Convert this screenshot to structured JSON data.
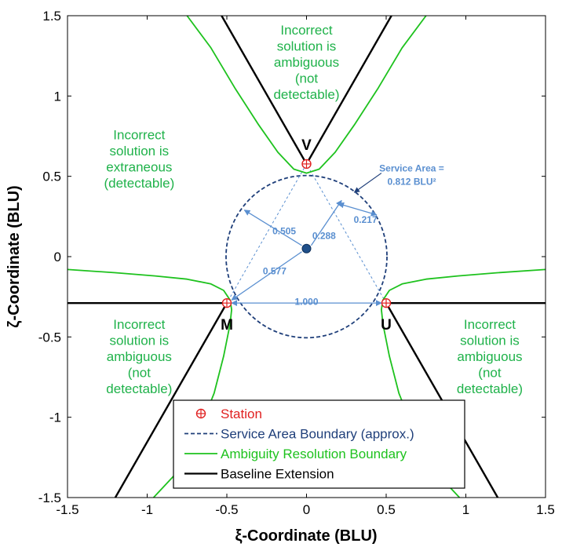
{
  "chart_data": {
    "type": "line",
    "xlabel": "ξ-Coordinate (BLU)",
    "ylabel": "ζ-Coordinate (BLU)",
    "xlim": [
      -1.5,
      1.5
    ],
    "ylim": [
      -1.5,
      1.5
    ],
    "xticks": [
      -1.5,
      -1,
      -0.5,
      0,
      0.5,
      1,
      1.5
    ],
    "yticks": [
      -1.5,
      -1,
      -0.5,
      0,
      0.5,
      1,
      1.5
    ],
    "xtick_labels": [
      "-1.5",
      "-1",
      "-0.5",
      "0",
      "0.5",
      "1",
      "1.5"
    ],
    "ytick_labels": [
      "-1.5",
      "-1",
      "-0.5",
      "0",
      "0.5",
      "1",
      "1.5"
    ],
    "grid": false,
    "legend_position": "bottom-center",
    "stations": [
      {
        "name": "V",
        "x": 0.0,
        "y": 0.577
      },
      {
        "name": "M",
        "x": -0.5,
        "y": -0.289
      },
      {
        "name": "U",
        "x": 0.5,
        "y": -0.289
      }
    ],
    "center": {
      "x": 0.0,
      "y": 0.05
    },
    "service_area": {
      "radius": 0.505,
      "center": [
        0.0,
        0.0
      ],
      "label": "Service Area =",
      "value": "0.812 BLU²"
    },
    "baseline_extensions": [
      [
        [
          0.0,
          0.577
        ],
        [
          -0.533,
          1.5
        ]
      ],
      [
        [
          0.0,
          0.577
        ],
        [
          0.533,
          1.5
        ]
      ],
      [
        [
          -0.5,
          -0.289
        ],
        [
          -1.5,
          -0.289
        ]
      ],
      [
        [
          -0.5,
          -0.289
        ],
        [
          -1.2,
          -1.5
        ]
      ],
      [
        [
          0.5,
          -0.289
        ],
        [
          1.5,
          -0.289
        ]
      ],
      [
        [
          0.5,
          -0.289
        ],
        [
          1.2,
          -1.5
        ]
      ]
    ],
    "ambiguity_boundary": [
      [
        [
          -0.75,
          1.5
        ],
        [
          -0.6,
          1.3
        ],
        [
          -0.45,
          1.05
        ],
        [
          -0.3,
          0.82
        ],
        [
          -0.18,
          0.65
        ],
        [
          -0.08,
          0.545
        ],
        [
          0.0,
          0.52
        ],
        [
          0.08,
          0.545
        ],
        [
          0.18,
          0.65
        ],
        [
          0.3,
          0.82
        ],
        [
          0.45,
          1.05
        ],
        [
          0.6,
          1.3
        ],
        [
          0.75,
          1.5
        ]
      ],
      [
        [
          -1.5,
          -0.08
        ],
        [
          -1.2,
          -0.1
        ],
        [
          -0.95,
          -0.12
        ],
        [
          -0.75,
          -0.14
        ],
        [
          -0.6,
          -0.17
        ],
        [
          -0.52,
          -0.21
        ],
        [
          -0.48,
          -0.27
        ],
        [
          -0.47,
          -0.33
        ],
        [
          -0.48,
          -0.42
        ],
        [
          -0.52,
          -0.62
        ],
        [
          -0.58,
          -0.85
        ],
        [
          -0.68,
          -1.1
        ],
        [
          -0.8,
          -1.33
        ],
        [
          -0.96,
          -1.5
        ]
      ],
      [
        [
          1.5,
          -0.08
        ],
        [
          1.2,
          -0.1
        ],
        [
          0.95,
          -0.12
        ],
        [
          0.75,
          -0.14
        ],
        [
          0.6,
          -0.17
        ],
        [
          0.52,
          -0.21
        ],
        [
          0.48,
          -0.27
        ],
        [
          0.47,
          -0.33
        ],
        [
          0.48,
          -0.42
        ],
        [
          0.52,
          -0.62
        ],
        [
          0.58,
          -0.85
        ],
        [
          0.68,
          -1.1
        ],
        [
          0.8,
          -1.33
        ],
        [
          0.96,
          -1.5
        ]
      ]
    ],
    "dimension_labels": [
      {
        "text": "0.505",
        "x": -0.14,
        "y": 0.16
      },
      {
        "text": "0.288",
        "x": 0.11,
        "y": 0.13
      },
      {
        "text": "0.217",
        "x": 0.37,
        "y": 0.23
      },
      {
        "text": "0.577",
        "x": -0.2,
        "y": -0.09
      },
      {
        "text": "1.000",
        "x": 0.0,
        "y": -0.28
      }
    ],
    "region_annotations": [
      {
        "lines": [
          "Incorrect",
          "solution is",
          "ambiguous",
          "(not",
          "detectable)"
        ],
        "x": 0.0,
        "y": 1.45
      },
      {
        "lines": [
          "Incorrect",
          "solution is",
          "extraneous",
          "(detectable)"
        ],
        "x": -1.05,
        "y": 0.8
      },
      {
        "lines": [
          "Incorrect",
          "solution is",
          "ambiguous",
          "(not",
          "detectable)"
        ],
        "x": -1.05,
        "y": -0.38
      },
      {
        "lines": [
          "Incorrect",
          "solution is",
          "ambiguous",
          "(not",
          "detectable)"
        ],
        "x": 1.15,
        "y": -0.38
      }
    ],
    "legend": [
      {
        "label": "Station",
        "color": "#e02020",
        "style": "marker"
      },
      {
        "label": "Service Area Boundary (approx.)",
        "color": "#1f3f7a",
        "style": "dashed"
      },
      {
        "label": "Ambiguity Resolution Boundary",
        "color": "#1ec21e",
        "style": "solid"
      },
      {
        "label": "Baseline Extension",
        "color": "#000000",
        "style": "solid"
      }
    ],
    "colors": {
      "station": "#e02020",
      "service_area": "#1f3f7a",
      "dimension": "#5a8fd0",
      "ambiguity": "#1ec21e",
      "baseline": "#000000",
      "region_text": "#1fb24a"
    }
  }
}
